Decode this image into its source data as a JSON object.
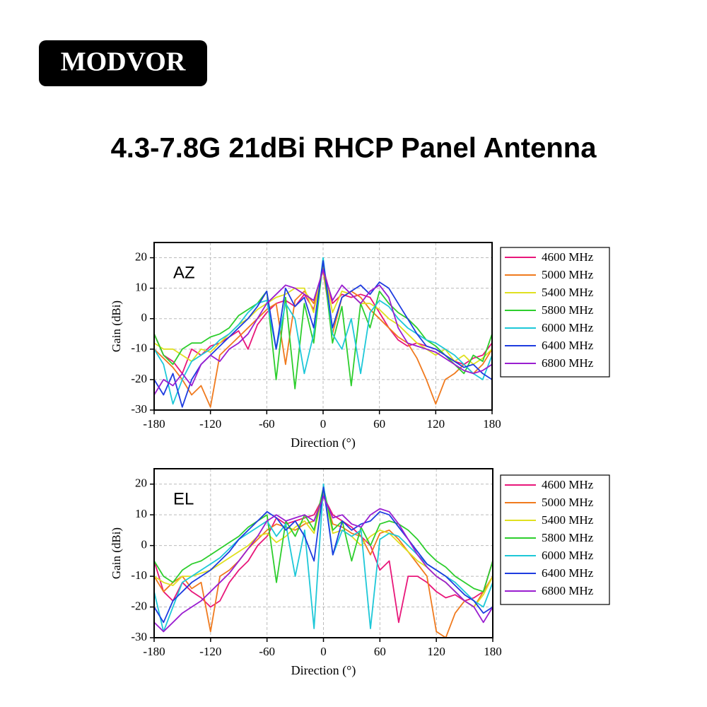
{
  "brand": "MODVOR",
  "headline": "4.3-7.8G 21dBi RHCP Panel Antenna",
  "chart_data": [
    {
      "type": "line",
      "label": "AZ",
      "x_label": "Direction (°)",
      "y_label": "Gain (dBi)",
      "xlim": [
        -180,
        180
      ],
      "xticks": [
        -180,
        -120,
        -60,
        0,
        60,
        120,
        180
      ],
      "ylim": [
        -30,
        25
      ],
      "yticks": [
        -30,
        -20,
        -10,
        0,
        10,
        20
      ],
      "grid": true,
      "legend": "outside-right",
      "x": [
        -180,
        -170,
        -160,
        -150,
        -140,
        -130,
        -120,
        -110,
        -100,
        -90,
        -80,
        -70,
        -60,
        -50,
        -40,
        -30,
        -20,
        -10,
        0,
        10,
        20,
        30,
        40,
        50,
        60,
        70,
        80,
        90,
        100,
        110,
        120,
        130,
        140,
        150,
        160,
        170,
        180
      ],
      "series": [
        {
          "name": "4600 MHz",
          "color": "#e8177a",
          "values": [
            -5,
            -12,
            -14,
            -18,
            -10,
            -12,
            -9,
            -8,
            -6,
            -4,
            -10,
            -2,
            2,
            5,
            6,
            4,
            8,
            3,
            17,
            5,
            8,
            7,
            8,
            7,
            2,
            -3,
            -7,
            -9,
            -8,
            -9,
            -10,
            -12,
            -14,
            -15,
            -13,
            -12,
            -8
          ]
        },
        {
          "name": "5000 MHz",
          "color": "#f07a1e",
          "values": [
            -10,
            -13,
            -16,
            -20,
            -25,
            -22,
            -29,
            -12,
            -9,
            -6,
            -3,
            0,
            3,
            5,
            -15,
            6,
            9,
            5,
            16,
            -5,
            7,
            9,
            7,
            3,
            0,
            -3,
            -6,
            -8,
            -13,
            -20,
            -28,
            -20,
            -18,
            -15,
            -18,
            -15,
            -10
          ]
        },
        {
          "name": "5400 MHz",
          "color": "#e0e020",
          "values": [
            -8,
            -10,
            -10,
            -12,
            -14,
            -10,
            -11,
            -8,
            -5,
            -2,
            0,
            3,
            5,
            7,
            8,
            10,
            10,
            2,
            18,
            2,
            9,
            8,
            5,
            5,
            3,
            0,
            -2,
            -5,
            -8,
            -10,
            -12,
            -10,
            -14,
            -12,
            -15,
            -13,
            -10
          ]
        },
        {
          "name": "5800 MHz",
          "color": "#2dce2d",
          "values": [
            -5,
            -12,
            -15,
            -10,
            -8,
            -8,
            -6,
            -5,
            -3,
            1,
            3,
            5,
            9,
            -20,
            7,
            -23,
            5,
            -8,
            19,
            -8,
            4,
            -22,
            5,
            -3,
            9,
            5,
            2,
            0,
            -3,
            -7,
            -9,
            -12,
            -15,
            -18,
            -12,
            -14,
            -5
          ]
        },
        {
          "name": "6000 MHz",
          "color": "#1ec8d8",
          "values": [
            -10,
            -15,
            -28,
            -20,
            -14,
            -12,
            -10,
            -7,
            -5,
            -2,
            2,
            5,
            6,
            -10,
            5,
            0,
            -18,
            -5,
            20,
            -5,
            -10,
            0,
            -18,
            2,
            6,
            4,
            0,
            -3,
            -5,
            -7,
            -8,
            -10,
            -12,
            -15,
            -18,
            -20,
            -12
          ]
        },
        {
          "name": "6400 MHz",
          "color": "#1e3ce0",
          "values": [
            -20,
            -25,
            -18,
            -29,
            -20,
            -15,
            -12,
            -9,
            -6,
            -3,
            0,
            4,
            9,
            -10,
            10,
            4,
            7,
            -3,
            19,
            -3,
            7,
            9,
            11,
            8,
            12,
            10,
            5,
            0,
            -5,
            -9,
            -10,
            -12,
            -14,
            -16,
            -15,
            -18,
            -20
          ]
        },
        {
          "name": "6800 MHz",
          "color": "#9a1ed0",
          "values": [
            -25,
            -20,
            -22,
            -18,
            -22,
            -15,
            -12,
            -14,
            -10,
            -8,
            -5,
            0,
            5,
            8,
            11,
            10,
            8,
            6,
            16,
            6,
            11,
            8,
            5,
            9,
            11,
            7,
            -3,
            -8,
            -9,
            -10,
            -11,
            -13,
            -15,
            -17,
            -18,
            -17,
            -15
          ]
        }
      ]
    },
    {
      "type": "line",
      "label": "EL",
      "x_label": "Direction (°)",
      "y_label": "Gain (dBi)",
      "xlim": [
        -180,
        180
      ],
      "xticks": [
        -180,
        -120,
        -60,
        0,
        60,
        120,
        180
      ],
      "ylim": [
        -30,
        25
      ],
      "yticks": [
        -30,
        -20,
        -10,
        0,
        10,
        20
      ],
      "grid": true,
      "legend": "outside-right",
      "x": [
        -180,
        -170,
        -160,
        -150,
        -140,
        -130,
        -120,
        -110,
        -100,
        -90,
        -80,
        -70,
        -60,
        -50,
        -40,
        -30,
        -20,
        -10,
        0,
        10,
        20,
        30,
        40,
        50,
        60,
        70,
        80,
        90,
        100,
        110,
        120,
        130,
        140,
        150,
        160,
        170,
        180
      ],
      "series": [
        {
          "name": "4600 MHz",
          "color": "#e8177a",
          "values": [
            -5,
            -15,
            -18,
            -12,
            -15,
            -17,
            -20,
            -18,
            -12,
            -8,
            -5,
            0,
            3,
            9,
            7,
            8,
            9,
            10,
            16,
            10,
            8,
            6,
            3,
            0,
            -8,
            -5,
            -25,
            -10,
            -10,
            -12,
            -15,
            -17,
            -16,
            -18,
            -17,
            -15,
            -5
          ]
        },
        {
          "name": "5000 MHz",
          "color": "#f07a1e",
          "values": [
            -10,
            -15,
            -12,
            -10,
            -14,
            -12,
            -28,
            -10,
            -8,
            -5,
            -1,
            2,
            5,
            7,
            6,
            5,
            7,
            8,
            17,
            7,
            6,
            4,
            3,
            -3,
            4,
            5,
            2,
            -2,
            -6,
            -10,
            -28,
            -30,
            -22,
            -18,
            -20,
            -15,
            -10
          ]
        },
        {
          "name": "5400 MHz",
          "color": "#e0e020",
          "values": [
            -10,
            -12,
            -13,
            -10,
            -10,
            -9,
            -8,
            -6,
            -4,
            -2,
            0,
            3,
            4,
            1,
            3,
            6,
            8,
            4,
            18,
            4,
            5,
            3,
            0,
            3,
            5,
            4,
            1,
            -2,
            -5,
            -7,
            -10,
            -12,
            -15,
            -18,
            -20,
            -16,
            -10
          ]
        },
        {
          "name": "5800 MHz",
          "color": "#2dce2d",
          "values": [
            -5,
            -10,
            -12,
            -8,
            -6,
            -5,
            -3,
            -1,
            1,
            3,
            6,
            8,
            10,
            -12,
            8,
            3,
            10,
            5,
            19,
            5,
            8,
            -5,
            6,
            0,
            7,
            8,
            7,
            5,
            2,
            -2,
            -5,
            -7,
            -10,
            -12,
            -14,
            -15,
            -5
          ]
        },
        {
          "name": "6000 MHz",
          "color": "#1ec8d8",
          "values": [
            -15,
            -28,
            -20,
            -12,
            -10,
            -8,
            -6,
            -4,
            -1,
            2,
            4,
            6,
            8,
            3,
            7,
            -10,
            5,
            -27,
            20,
            -3,
            5,
            3,
            5,
            -27,
            2,
            4,
            3,
            0,
            -3,
            -6,
            -8,
            -10,
            -12,
            -15,
            -18,
            -20,
            -12
          ]
        },
        {
          "name": "6400 MHz",
          "color": "#1e3ce0",
          "values": [
            -20,
            -25,
            -18,
            -15,
            -12,
            -10,
            -8,
            -5,
            -2,
            2,
            5,
            8,
            11,
            9,
            5,
            8,
            3,
            -5,
            19,
            -3,
            8,
            5,
            7,
            8,
            11,
            10,
            6,
            2,
            -2,
            -6,
            -8,
            -10,
            -13,
            -16,
            -18,
            -22,
            -20
          ]
        },
        {
          "name": "6800 MHz",
          "color": "#9a1ed0",
          "values": [
            -25,
            -28,
            -25,
            -22,
            -20,
            -18,
            -15,
            -12,
            -9,
            -5,
            -1,
            3,
            8,
            10,
            8,
            9,
            10,
            8,
            16,
            9,
            10,
            7,
            6,
            10,
            12,
            11,
            7,
            2,
            -3,
            -7,
            -10,
            -12,
            -15,
            -18,
            -20,
            -25,
            -20
          ]
        }
      ]
    }
  ]
}
